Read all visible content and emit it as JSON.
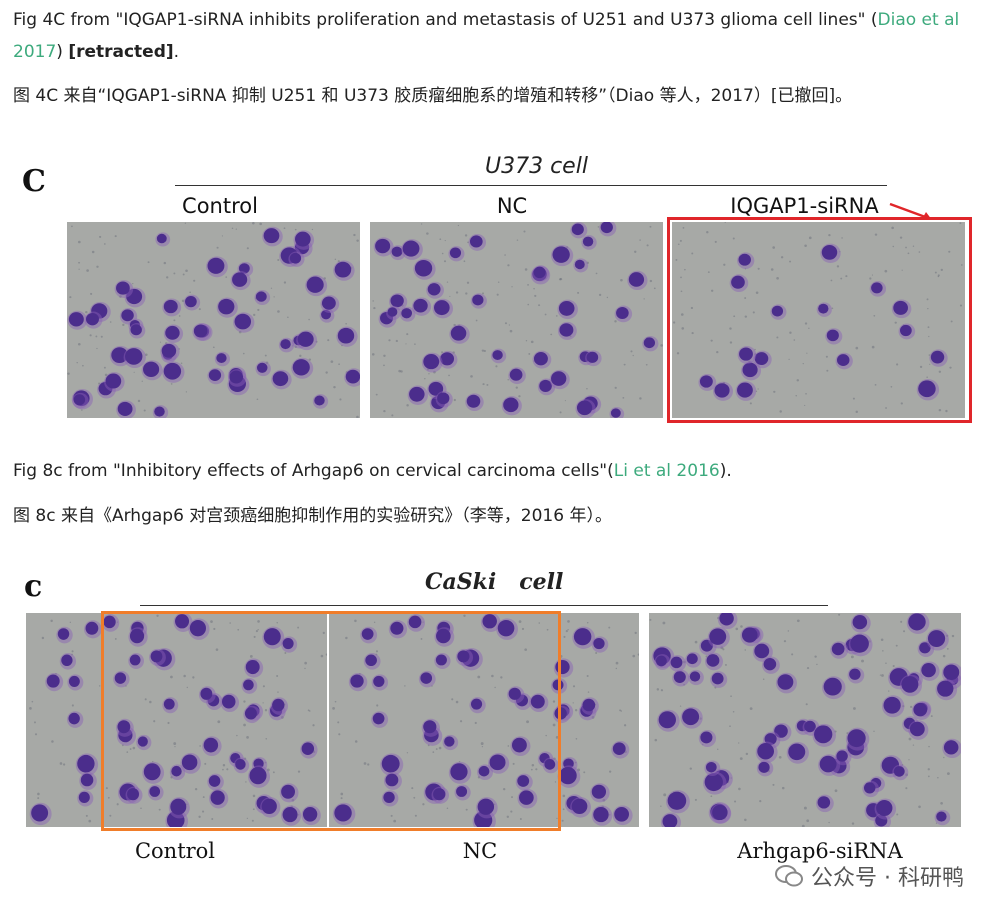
{
  "paragraphs": {
    "fig4_en_prefix": "Fig 4C from \"IQGAP1-siRNA inhibits proliferation and metastasis of U251 and U373 glioma cell lines\" (",
    "fig4_en_link": "Diao et al 2017",
    "fig4_en_mid": ") ",
    "fig4_en_bold": "[retracted]",
    "fig4_en_end": ".",
    "fig4_zh": "图 4C 来自“IQGAP1-siRNA 抑制 U251 和 U373 胶质瘤细胞系的增殖和转移”（Diao 等人，2017）[已撤回]。",
    "fig8_en_prefix": "Fig 8c from \"Inhibitory effects of Arhgap6 on cervical carcinoma cells\"(",
    "fig8_en_link": "Li et al 2016",
    "fig8_en_end": ").",
    "fig8_zh": "图 8c 来自《Arhgap6 对宫颈癌细胞抑制作用的实验研究》（李等，2016 年）。"
  },
  "figure_top": {
    "panel_letter": "C",
    "cell_title": "U373 cell",
    "labels": [
      "Control",
      "NC",
      "IQGAP1-siRNA"
    ]
  },
  "figure_bottom": {
    "panel_letter": "c",
    "cell_title": "CaSki   cell",
    "labels": [
      "Control",
      "NC",
      "Arhgap6-siRNA"
    ]
  },
  "watermark": {
    "text": "公众号 · 科研鸭",
    "icon": "wechat-icon"
  },
  "colors": {
    "link": "#3daa7d",
    "highlight_red": "#e0262a",
    "highlight_orange": "#f07d2a",
    "cell_purple": "#4b2d8c"
  }
}
